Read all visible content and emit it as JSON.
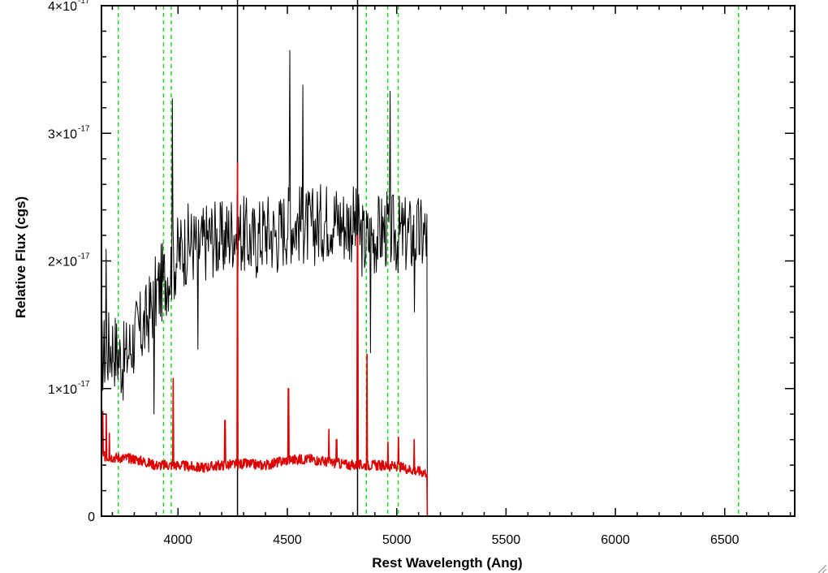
{
  "chart_data": {
    "type": "line",
    "title": "",
    "xlabel": "Rest Wavelength (Ang)",
    "ylabel": "Relative Flux (cgs)",
    "xlim": [
      3650,
      6820
    ],
    "ylim": [
      0,
      4e-17
    ],
    "x_ticks": [
      {
        "value": 4000,
        "label": "4000"
      },
      {
        "value": 4500,
        "label": "4500"
      },
      {
        "value": 5000,
        "label": "5000"
      },
      {
        "value": 5500,
        "label": "5500"
      },
      {
        "value": 6000,
        "label": "6000"
      },
      {
        "value": 6500,
        "label": "6500"
      }
    ],
    "y_ticks": [
      {
        "value": 0,
        "label": "0",
        "exp": ""
      },
      {
        "value": 1e-17,
        "label": "1×10",
        "exp": "-17"
      },
      {
        "value": 2e-17,
        "label": "2×10",
        "exp": "-17"
      },
      {
        "value": 3e-17,
        "label": "3×10",
        "exp": "-17"
      },
      {
        "value": 4e-17,
        "label": "4×10",
        "exp": "-17"
      }
    ],
    "grid": false,
    "vertical_lines": {
      "green_dashed": [
        3727,
        3934,
        3969,
        4861,
        4959,
        5007,
        6563
      ],
      "black_solid": [
        4272,
        4821
      ]
    },
    "series": [
      {
        "color": "#000000",
        "anchors": [
          [
            3650,
            1.25e-17
          ],
          [
            3700,
            1.35e-17
          ],
          [
            3750,
            1.2e-17
          ],
          [
            3800,
            1.4e-17
          ],
          [
            3850,
            1.5e-17
          ],
          [
            3900,
            1.75e-17
          ],
          [
            3950,
            1.9e-17
          ],
          [
            4000,
            2.05e-17
          ],
          [
            4050,
            2.15e-17
          ],
          [
            4100,
            2.1e-17
          ],
          [
            4150,
            2.2e-17
          ],
          [
            4200,
            2.15e-17
          ],
          [
            4250,
            2.25e-17
          ],
          [
            4300,
            2.2e-17
          ],
          [
            4350,
            2.15e-17
          ],
          [
            4400,
            2.25e-17
          ],
          [
            4450,
            2.2e-17
          ],
          [
            4500,
            2.3e-17
          ],
          [
            4550,
            2.3e-17
          ],
          [
            4600,
            2.25e-17
          ],
          [
            4650,
            2.3e-17
          ],
          [
            4700,
            2.35e-17
          ],
          [
            4750,
            2.3e-17
          ],
          [
            4800,
            2.3e-17
          ],
          [
            4850,
            2.15e-17
          ],
          [
            4900,
            2.2e-17
          ],
          [
            4950,
            2.25e-17
          ],
          [
            5000,
            2.2e-17
          ],
          [
            5050,
            2.2e-17
          ],
          [
            5100,
            2.2e-17
          ],
          [
            5138,
            2.2e-17
          ]
        ],
        "noise": 3.2e-18,
        "spikes": [
          [
            3670,
            8e-18
          ],
          [
            3890,
            -9e-18
          ],
          [
            3975,
            1.3e-17
          ],
          [
            4090,
            -8e-18
          ],
          [
            4510,
            1.35e-17
          ],
          [
            4570,
            1.1e-17
          ],
          [
            4880,
            -9e-18
          ],
          [
            4970,
            1.1e-17
          ],
          [
            5080,
            -6e-18
          ]
        ],
        "end_x": 5140,
        "end_y": 0
      },
      {
        "color": "#dd0000",
        "anchors": [
          [
            3650,
            4.7e-18
          ],
          [
            3800,
            4.5e-18
          ],
          [
            3900,
            4e-18
          ],
          [
            4000,
            4e-18
          ],
          [
            4100,
            3.8e-18
          ],
          [
            4200,
            4e-18
          ],
          [
            4300,
            4.1e-18
          ],
          [
            4400,
            4e-18
          ],
          [
            4500,
            4.4e-18
          ],
          [
            4600,
            4.5e-18
          ],
          [
            4700,
            4.2e-18
          ],
          [
            4800,
            4e-18
          ],
          [
            4900,
            4e-18
          ],
          [
            5000,
            3.9e-18
          ],
          [
            5138,
            3.4e-18
          ]
        ],
        "noise": 4e-19,
        "spikes": [
          [
            3655,
            8.2e-18
          ],
          [
            3672,
            8e-18
          ],
          [
            3686,
            6.5e-18
          ],
          [
            3978,
            1.08e-17
          ],
          [
            4215,
            7.5e-18
          ],
          [
            4272,
            2.77e-17
          ],
          [
            4505,
            1e-17
          ],
          [
            4690,
            6.8e-18
          ],
          [
            4725,
            6e-18
          ],
          [
            4821,
            2.2e-17
          ],
          [
            4864,
            1.27e-17
          ],
          [
            4960,
            5.8e-18
          ],
          [
            5008,
            6.2e-18
          ],
          [
            5080,
            6e-18
          ]
        ],
        "end_x": 6820,
        "end_y": 0
      }
    ]
  }
}
